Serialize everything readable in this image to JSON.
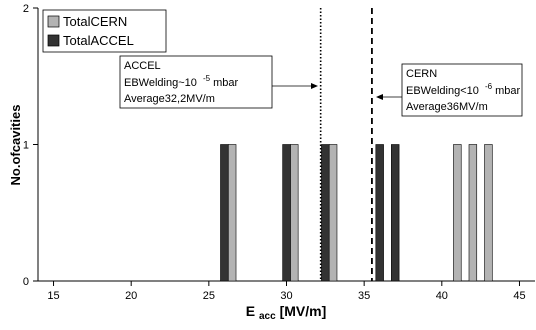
{
  "chart_data": {
    "type": "bar",
    "xlabel_main": "E",
    "xlabel_sub": "acc",
    "xlabel_unit": "[MV/m]",
    "ylabel": "No.ofcavities",
    "xlim": [
      14,
      46
    ],
    "ylim": [
      0,
      2
    ],
    "x_ticks": [
      15,
      20,
      25,
      30,
      35,
      40,
      45
    ],
    "y_ticks": [
      0,
      1,
      2
    ],
    "grid": false,
    "legend_position": "top-left",
    "series": [
      {
        "name": "TotalCERN",
        "color": "#b3b3b3",
        "x": [
          26.5,
          30.5,
          33.0,
          41.0,
          42.0,
          43.0
        ],
        "values": [
          1,
          1,
          1,
          1,
          1,
          1
        ]
      },
      {
        "name": "TotalACCEL",
        "color": "#333333",
        "x": [
          26.0,
          30.0,
          32.5,
          36.0,
          37.0
        ],
        "values": [
          1,
          1,
          1,
          1,
          1
        ]
      }
    ],
    "reference_lines": [
      {
        "x": 32.2,
        "style": "dotted"
      },
      {
        "x": 35.5,
        "style": "dashed"
      }
    ],
    "annotations": [
      {
        "title": "ACCEL",
        "line2_prefix": "EBWelding~10",
        "line2_exp": "-5",
        "line2_suffix": "mbar",
        "line3": "Average32,2MV/m",
        "arrow_direction": "right"
      },
      {
        "title": "CERN",
        "line2_prefix": "EBWelding<10",
        "line2_exp": "-6",
        "line2_suffix": "mbar",
        "line3": "Average36MV/m",
        "arrow_direction": "left"
      }
    ]
  }
}
